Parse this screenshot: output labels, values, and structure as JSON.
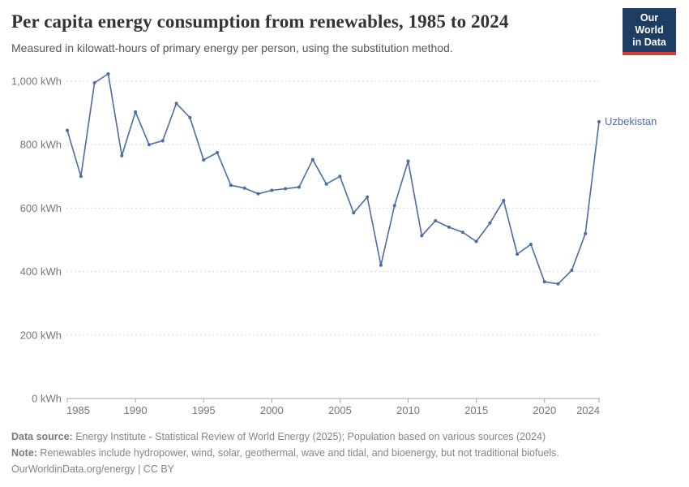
{
  "header": {
    "title": "Per capita energy consumption from renewables, 1985 to 2024",
    "subtitle": "Measured in kilowatt-hours of primary energy per person, using the substitution method.",
    "logo": {
      "line1": "Our World",
      "line2": "in Data",
      "bg_color": "#1d3d63",
      "accent_color": "#d63e32"
    }
  },
  "chart_data": {
    "type": "line",
    "title": "Per capita energy consumption from renewables, 1985 to 2024",
    "subtitle": "Measured in kilowatt-hours of primary energy per person, using the substitution method.",
    "unit": "kWh",
    "entity_label": "Uzbekistan",
    "x": [
      1985,
      1986,
      1987,
      1988,
      1989,
      1990,
      1991,
      1992,
      1993,
      1994,
      1995,
      1996,
      1997,
      1998,
      1999,
      2000,
      2001,
      2002,
      2003,
      2004,
      2005,
      2006,
      2007,
      2008,
      2009,
      2010,
      2011,
      2012,
      2013,
      2014,
      2015,
      2016,
      2017,
      2018,
      2019,
      2020,
      2021,
      2022,
      2023,
      2024
    ],
    "series": [
      {
        "name": "Uzbekistan",
        "values": [
          845,
          700,
          995,
          1023,
          765,
          903,
          800,
          812,
          930,
          885,
          752,
          775,
          672,
          663,
          645,
          656,
          661,
          666,
          753,
          676,
          700,
          585,
          635,
          420,
          608,
          748,
          513,
          560,
          540,
          524,
          495,
          553,
          624,
          455,
          486,
          368,
          361,
          404,
          520,
          872
        ]
      }
    ],
    "xlabel": "",
    "ylabel": "",
    "ylim": [
      0,
      1000
    ],
    "yticks": [
      0,
      200,
      400,
      600,
      800,
      1000
    ],
    "ytick_labels": [
      "0 kWh",
      "200 kWh",
      "400 kWh",
      "600 kWh",
      "800 kWh",
      "1,000 kWh"
    ],
    "xticks": [
      1985,
      1990,
      1995,
      2000,
      2005,
      2010,
      2015,
      2020,
      2024
    ],
    "grid": "horizontal-dashed",
    "legend_position": "end-of-line-label",
    "line_color": "#4c6ba5",
    "grid_color": "#dcdcdc",
    "axis_color": "#a5a5a5",
    "tick_label_color": "#777777"
  },
  "footer": {
    "source_label": "Data source:",
    "source_text": " Energy Institute - Statistical Review of World Energy (2025); Population based on various sources (2024)",
    "note_label": "Note:",
    "note_text": " Renewables include hydropower, wind, solar, geothermal, wave and tidal, and bioenergy, but not traditional biofuels.",
    "license": "OurWorldinData.org/energy | CC BY"
  }
}
